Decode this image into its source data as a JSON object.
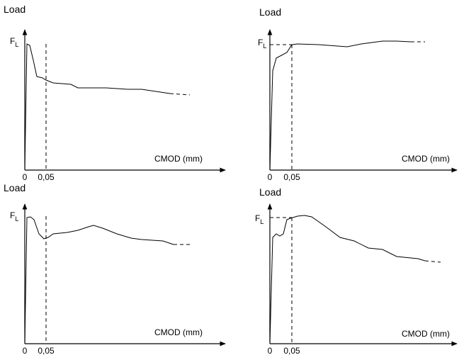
{
  "panels": [
    {
      "y_label": "Load",
      "fl_label": "F",
      "fl_subscript": "L",
      "x_label": "CMOD (mm)",
      "x_ticks": [
        "0",
        "0,05"
      ]
    },
    {
      "y_label": "Load",
      "fl_label": "F",
      "fl_subscript": "L",
      "x_label": "CMOD (mm)",
      "x_ticks": [
        "0",
        "0,05"
      ]
    },
    {
      "y_label": "Load",
      "fl_label": "F",
      "fl_subscript": "L",
      "x_label": "CMOD (mm)",
      "x_ticks": [
        "0",
        "0,05"
      ]
    },
    {
      "y_label": "Load",
      "fl_label": "F",
      "fl_subscript": "L",
      "x_label": "CMOD (mm)",
      "x_ticks": [
        "0",
        "0,05"
      ]
    }
  ]
}
